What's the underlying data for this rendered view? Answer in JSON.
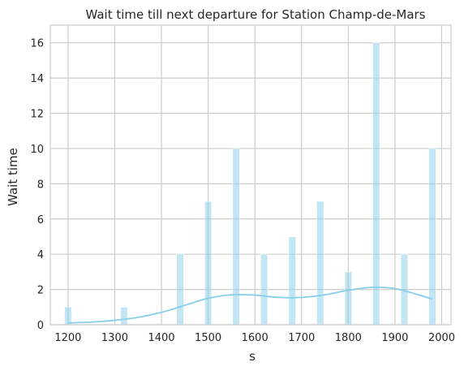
{
  "chart_data": {
    "type": "bar",
    "title": "Wait time till next departure for Station Champ-de-Mars",
    "xlabel": "s",
    "ylabel": "Wait time",
    "xlim": [
      1162,
      2020
    ],
    "ylim": [
      0,
      17
    ],
    "grid": true,
    "xticks": [
      1200,
      1300,
      1400,
      1500,
      1600,
      1700,
      1800,
      1900,
      2000
    ],
    "yticks": [
      0,
      2,
      4,
      6,
      8,
      10,
      12,
      14,
      16
    ],
    "colors": {
      "bar": "#87ceeb",
      "kde": "#87ceeb"
    },
    "bars": [
      {
        "x": 1200,
        "count": 1
      },
      {
        "x": 1320,
        "count": 1
      },
      {
        "x": 1440,
        "count": 4
      },
      {
        "x": 1500,
        "count": 7
      },
      {
        "x": 1560,
        "count": 10
      },
      {
        "x": 1620,
        "count": 4
      },
      {
        "x": 1680,
        "count": 5
      },
      {
        "x": 1740,
        "count": 7
      },
      {
        "x": 1800,
        "count": 3
      },
      {
        "x": 1860,
        "count": 16
      },
      {
        "x": 1920,
        "count": 4
      },
      {
        "x": 1980,
        "count": 10
      }
    ],
    "kde_curve": {
      "x": [
        1200,
        1250,
        1300,
        1350,
        1400,
        1450,
        1500,
        1550,
        1600,
        1650,
        1700,
        1750,
        1800,
        1850,
        1900,
        1950,
        1980
      ],
      "y": [
        0.1,
        0.15,
        0.25,
        0.42,
        0.7,
        1.1,
        1.5,
        1.7,
        1.68,
        1.55,
        1.55,
        1.7,
        1.95,
        2.12,
        2.05,
        1.7,
        1.45
      ]
    }
  }
}
